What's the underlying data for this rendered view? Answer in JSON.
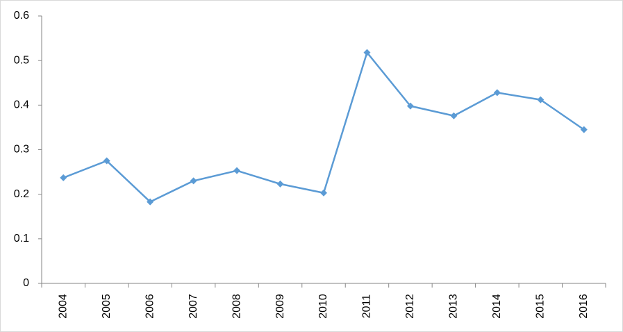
{
  "chart_data": {
    "type": "line",
    "categories": [
      "2004",
      "2005",
      "2006",
      "2007",
      "2008",
      "2009",
      "2010",
      "2011",
      "2012",
      "2013",
      "2014",
      "2015",
      "2016"
    ],
    "series": [
      {
        "color": "#5b9bd5",
        "values": [
          0.237,
          0.275,
          0.183,
          0.23,
          0.253,
          0.223,
          0.203,
          0.518,
          0.398,
          0.376,
          0.428,
          0.412,
          0.345
        ]
      }
    ],
    "ylim": [
      0,
      0.6
    ],
    "yticks": [
      0,
      0.1,
      0.2,
      0.3,
      0.4,
      0.5,
      0.6
    ],
    "grid": false
  }
}
